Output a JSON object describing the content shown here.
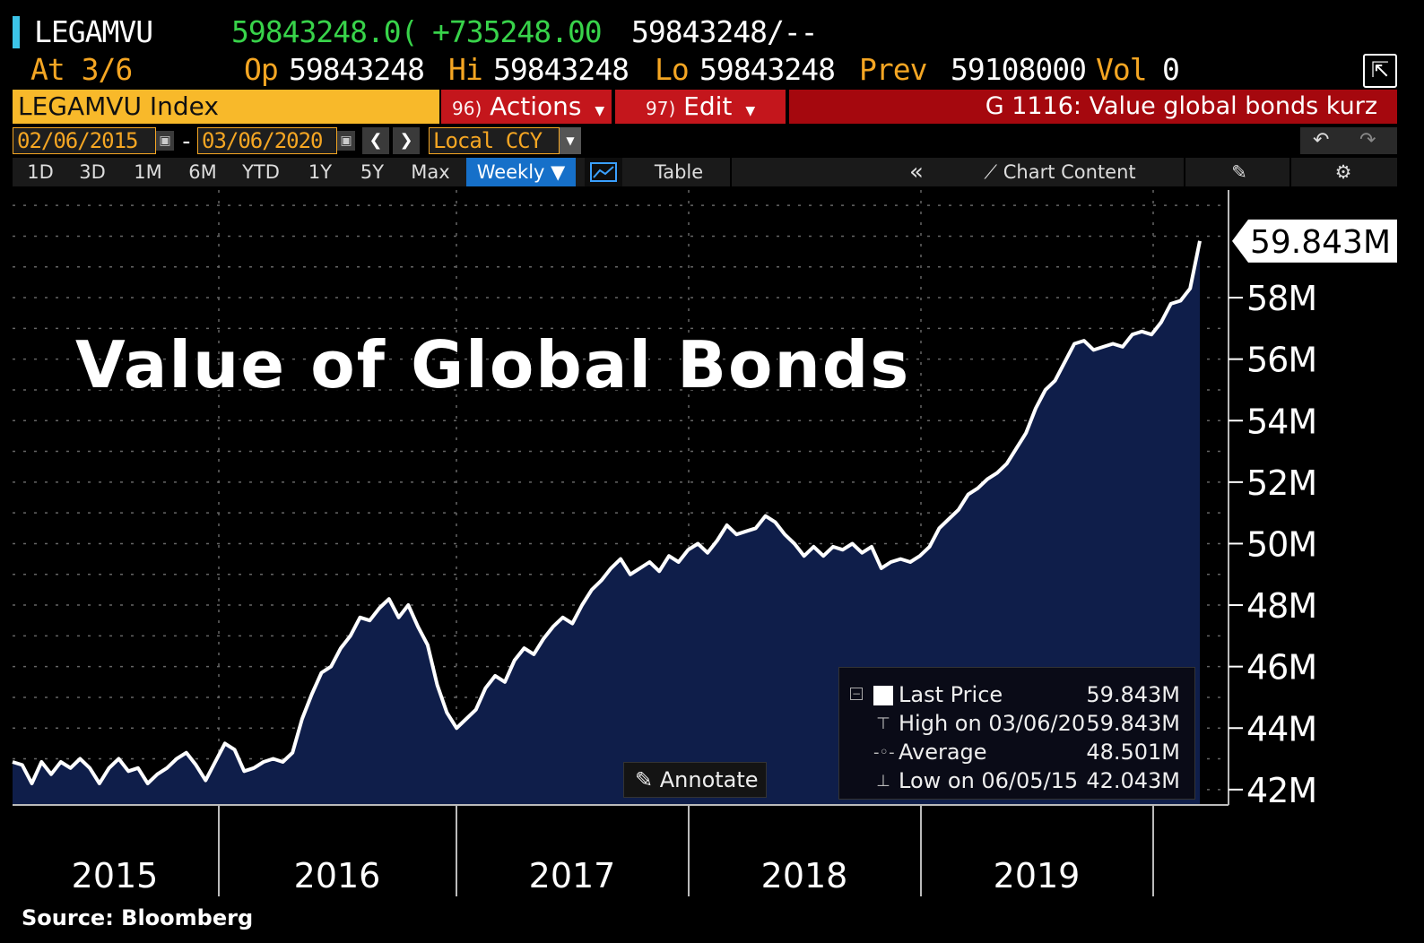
{
  "header": {
    "ticker": "LEGAMVU",
    "last": "59843248.0(",
    "change": "+735248.00",
    "bid_ask": "59843248/--",
    "at_label": "At 3/6",
    "op_label": "Op",
    "op_value": "59843248",
    "hi_label": "Hi",
    "hi_value": "59843248",
    "lo_label": "Lo",
    "lo_value": "59843248",
    "prev_label": "Prev",
    "prev_value": "59108000",
    "vol_label": "Vol",
    "vol_value": "0"
  },
  "toolbar": {
    "index_name": "LEGAMVU Index",
    "actions_num": "96)",
    "actions_label": "Actions",
    "edit_num": "97)",
    "edit_label": "Edit",
    "chart_title": "G 1116: Value global bonds kurz",
    "start_date": "02/06/2015",
    "date_sep": "-",
    "end_date": "03/06/2020",
    "currency": "Local CCY",
    "periods": [
      "1D",
      "3D",
      "1M",
      "6M",
      "YTD",
      "1Y",
      "5Y",
      "Max"
    ],
    "frequency": "Weekly ▼",
    "table_label": "Table",
    "chart_content_label": "Chart Content"
  },
  "overlay": {
    "title": "Value of Global Bonds",
    "annotate_label": "Annotate",
    "source": "Source:  Bloomberg"
  },
  "legend": {
    "rows": [
      {
        "label": "Last Price",
        "value": "59.843M"
      },
      {
        "label": "High on 03/06/20",
        "value": "59.843M"
      },
      {
        "label": "Average",
        "value": "48.501M"
      },
      {
        "label": "Low on 06/05/15",
        "value": "42.043M"
      }
    ]
  },
  "colors": {
    "line": "#ffffff",
    "area": "#0f1e4a",
    "grid": "#666666",
    "amber": "#f5a623",
    "green": "#38d34a",
    "red": "#c4161c"
  },
  "chart_data": {
    "type": "area",
    "title": "Value of Global Bonds",
    "xlabel": "",
    "ylabel": "",
    "x_ticks": [
      "2015",
      "2016",
      "2017",
      "2018",
      "2019"
    ],
    "y_ticks": [
      "42M",
      "44M",
      "46M",
      "48M",
      "50M",
      "52M",
      "54M",
      "56M",
      "58M"
    ],
    "y_tick_values": [
      42,
      44,
      46,
      48,
      50,
      52,
      54,
      56,
      58
    ],
    "ylim": [
      41.5,
      61.5
    ],
    "y_unit": "M",
    "last_value_label": "59.843M",
    "grid": true,
    "series": [
      {
        "values": [
          42.9,
          42.8,
          42.2,
          42.9,
          42.5,
          42.9,
          42.7,
          43.0,
          42.7,
          42.2,
          42.7,
          43.0,
          42.6,
          42.7,
          42.2,
          42.5,
          42.7,
          43.0,
          43.2,
          42.8,
          42.3,
          42.9,
          43.5,
          43.3,
          42.6,
          42.7,
          42.9,
          43.0,
          42.9,
          43.2,
          44.3,
          45.1,
          45.8,
          46.0,
          46.6,
          47.0,
          47.6,
          47.5,
          47.9,
          48.2,
          47.6,
          48.0,
          47.3,
          46.7,
          45.4,
          44.5,
          44.0,
          44.3,
          44.6,
          45.3,
          45.7,
          45.5,
          46.2,
          46.6,
          46.4,
          46.9,
          47.3,
          47.6,
          47.4,
          48.0,
          48.5,
          48.8,
          49.2,
          49.5,
          49.0,
          49.2,
          49.4,
          49.1,
          49.6,
          49.4,
          49.8,
          50.0,
          49.7,
          50.1,
          50.6,
          50.3,
          50.4,
          50.5,
          50.9,
          50.7,
          50.3,
          50.0,
          49.6,
          49.9,
          49.6,
          49.9,
          49.8,
          50.0,
          49.7,
          49.9,
          49.2,
          49.4,
          49.5,
          49.4,
          49.6,
          49.9,
          50.5,
          50.8,
          51.1,
          51.6,
          51.8,
          52.1,
          52.3,
          52.6,
          53.1,
          53.6,
          54.4,
          55.0,
          55.3,
          55.9,
          56.5,
          56.6,
          56.3,
          56.4,
          56.5,
          56.4,
          56.8,
          56.9,
          56.8,
          57.2,
          57.8,
          57.9,
          58.3,
          59.843
        ]
      }
    ]
  }
}
